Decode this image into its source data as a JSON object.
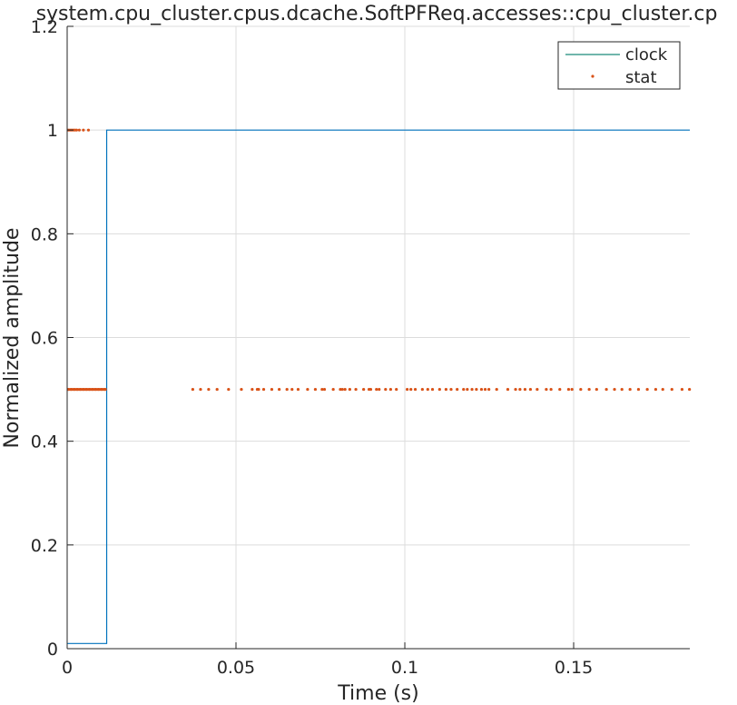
{
  "chart_data": {
    "type": "line",
    "title": "system.cpu_cluster.cpus.dcache.SoftPFReq.accesses::cpu_cluster.cp",
    "xlabel": "Time (s)",
    "ylabel": "Normalized amplitude",
    "xlim": [
      0,
      0.1844
    ],
    "ylim": [
      0,
      1.2
    ],
    "xticks": [
      0,
      0.05,
      0.1,
      0.15
    ],
    "xtick_labels": [
      "0",
      "0.05",
      "0.1",
      "0.15"
    ],
    "yticks": [
      0,
      0.2,
      0.4,
      0.6,
      0.8,
      1.0,
      1.2
    ],
    "ytick_labels": [
      "0",
      "0.2",
      "0.4",
      "0.6",
      "0.8",
      "1",
      "1.2"
    ],
    "grid": true,
    "legend": {
      "position": "top-right",
      "entries": [
        "clock",
        "stat"
      ]
    },
    "series": [
      {
        "name": "clock",
        "style": "line",
        "color": "#0072BD",
        "x": [
          0,
          0.0117,
          0.0117,
          0.1844
        ],
        "y": [
          0.01,
          0.01,
          1.0,
          1.0
        ]
      },
      {
        "name": "stat",
        "style": "points",
        "color": "#D95319",
        "x": [
          0.0003,
          0.0008,
          0.0013,
          0.0018,
          0.0023,
          0.0028,
          0.0036,
          0.0048,
          0.0063,
          0.0003,
          0.0012,
          0.0021,
          0.003,
          0.0039,
          0.0048,
          0.0057,
          0.0066,
          0.0075,
          0.0084,
          0.0093,
          0.0102,
          0.0111,
          0.0372,
          0.0395,
          0.0419,
          0.0444,
          0.0478,
          0.0516,
          0.0548,
          0.0563,
          0.0567,
          0.0582,
          0.0606,
          0.0628,
          0.0651,
          0.0666,
          0.0684,
          0.0712,
          0.0735,
          0.0755,
          0.0762,
          0.0788,
          0.0809,
          0.0815,
          0.0823,
          0.0837,
          0.0855,
          0.0878,
          0.0894,
          0.0899,
          0.0916,
          0.0924,
          0.0943,
          0.0958,
          0.0975,
          0.1007,
          0.1018,
          0.1031,
          0.1052,
          0.1068,
          0.1082,
          0.1103,
          0.1122,
          0.1137,
          0.1155,
          0.1174,
          0.1185,
          0.1199,
          0.1212,
          0.1227,
          0.1238,
          0.1249,
          0.1272,
          0.1305,
          0.1328,
          0.1341,
          0.1356,
          0.1372,
          0.1392,
          0.1419,
          0.1433,
          0.1459,
          0.1485,
          0.1495,
          0.1521,
          0.1546,
          0.1568,
          0.1597,
          0.1621,
          0.1643,
          0.1667,
          0.1692,
          0.1718,
          0.1743,
          0.1764,
          0.1791,
          0.1821,
          0.1843
        ],
        "y": [
          1,
          1,
          1,
          1,
          1,
          1,
          1,
          1,
          1,
          0.5,
          0.5,
          0.5,
          0.5,
          0.5,
          0.5,
          0.5,
          0.5,
          0.5,
          0.5,
          0.5,
          0.5,
          0.5,
          0.5,
          0.5,
          0.5,
          0.5,
          0.5,
          0.5,
          0.5,
          0.5,
          0.5,
          0.5,
          0.5,
          0.5,
          0.5,
          0.5,
          0.5,
          0.5,
          0.5,
          0.5,
          0.5,
          0.5,
          0.5,
          0.5,
          0.5,
          0.5,
          0.5,
          0.5,
          0.5,
          0.5,
          0.5,
          0.5,
          0.5,
          0.5,
          0.5,
          0.5,
          0.5,
          0.5,
          0.5,
          0.5,
          0.5,
          0.5,
          0.5,
          0.5,
          0.5,
          0.5,
          0.5,
          0.5,
          0.5,
          0.5,
          0.5,
          0.5,
          0.5,
          0.5,
          0.5,
          0.5,
          0.5,
          0.5,
          0.5,
          0.5,
          0.5,
          0.5,
          0.5,
          0.5,
          0.5,
          0.5,
          0.5,
          0.5,
          0.5,
          0.5,
          0.5,
          0.5,
          0.5,
          0.5,
          0.5,
          0.5,
          0.5,
          0.5
        ]
      }
    ]
  }
}
